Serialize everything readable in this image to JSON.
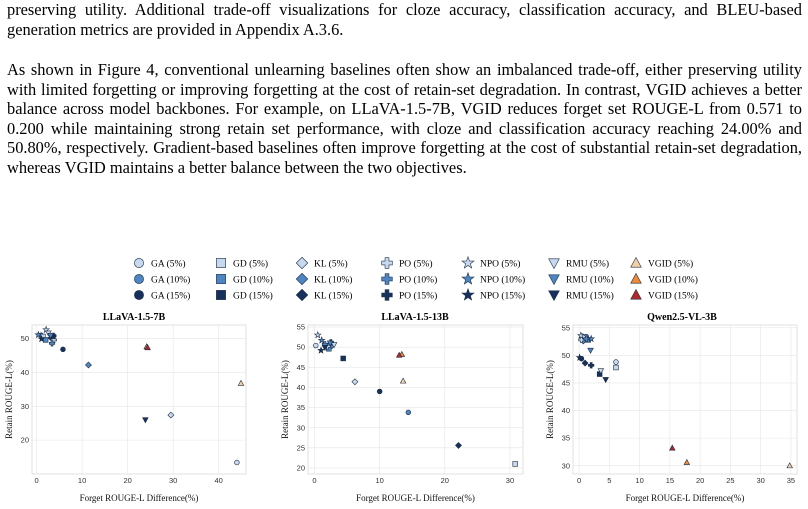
{
  "text": {
    "p1": "preserving utility. Additional trade-off visualizations for cloze accuracy, classification accuracy, and BLEU-based generation metrics are provided in Appendix A.3.6.",
    "p2a": "As shown in Figure 4, conventional unlearning baselines often show an imbalanced trade-off, either preserving utility with limited forgetting or improving forgetting at the cost of retain-set degradation. In contrast, ",
    "vgid": "VGID",
    "p2b": " achieves a better balance across model backbones. For example, on LLaVA-1.5-7B, ",
    "p2c": " reduces forget set ROUGE-L from 0.571 to 0.200 while maintaining strong retain set performance, with cloze and classification accuracy reaching 24.00% and 50.80%, respectively. Gradient-based baselines often improve forgetting at the cost of substantial retain-set degradation, whereas ",
    "p2d": " maintains a better balance between the two objectives."
  },
  "legend": {
    "methods": [
      {
        "name": "GA",
        "marker": "circle",
        "labels": [
          "GA (5%)",
          "GA (10%)",
          "GA (15%)"
        ]
      },
      {
        "name": "GD",
        "marker": "square",
        "labels": [
          "GD (5%)",
          "GD (10%)",
          "GD (15%)"
        ]
      },
      {
        "name": "KL",
        "marker": "diamond",
        "labels": [
          "KL (5%)",
          "KL (10%)",
          "KL (15%)"
        ]
      },
      {
        "name": "PO",
        "marker": "plus",
        "labels": [
          "PO (5%)",
          "PO (10%)",
          "PO (15%)"
        ]
      },
      {
        "name": "NPO",
        "marker": "star",
        "labels": [
          "NPO (5%)",
          "NPO (10%)",
          "NPO (15%)"
        ]
      },
      {
        "name": "RMU",
        "marker": "triangle-down",
        "labels": [
          "RMU (5%)",
          "RMU (10%)",
          "RMU (15%)"
        ]
      },
      {
        "name": "VGID",
        "marker": "triangle-up",
        "labels": [
          "VGID (5%)",
          "VGID (10%)",
          "VGID (15%)"
        ]
      }
    ],
    "blue_shades": [
      "#c6d9ee",
      "#4e86c4",
      "#17315f"
    ],
    "orange_shades": [
      "#f4cfa3",
      "#ef8a3a",
      "#b3292a"
    ]
  },
  "chart_data": [
    {
      "type": "scatter",
      "title": "LLaVA-1.5-7B",
      "xlabel": "Forget ROUGE-L Difference(%)",
      "ylabel": "Retain ROUGE-L(%)",
      "xlim": [
        -1,
        46
      ],
      "ylim": [
        10,
        54
      ],
      "xticks": [
        0,
        10,
        20,
        30,
        40
      ],
      "yticks": [
        20,
        30,
        40,
        50
      ],
      "grid": true,
      "points": [
        {
          "method": "GA",
          "level": 0,
          "x": 44.0,
          "y": 13.4
        },
        {
          "method": "GA",
          "level": 1,
          "x": 1.0,
          "y": 51.0
        },
        {
          "method": "GA",
          "level": 2,
          "x": 5.8,
          "y": 46.8
        },
        {
          "method": "GD",
          "level": 0,
          "x": 1.4,
          "y": 50.6
        },
        {
          "method": "GD",
          "level": 1,
          "x": 2.0,
          "y": 49.6
        },
        {
          "method": "GD",
          "level": 2,
          "x": 3.6,
          "y": 50.6
        },
        {
          "method": "KL",
          "level": 0,
          "x": 29.5,
          "y": 27.4
        },
        {
          "method": "KL",
          "level": 1,
          "x": 11.4,
          "y": 42.2
        },
        {
          "method": "KL",
          "level": 2,
          "x": 3.2,
          "y": 50.2
        },
        {
          "method": "PO",
          "level": 0,
          "x": 3.8,
          "y": 49.6
        },
        {
          "method": "PO",
          "level": 1,
          "x": 3.4,
          "y": 48.6
        },
        {
          "method": "PO",
          "level": 2,
          "x": 3.7,
          "y": 50.8
        },
        {
          "method": "NPO",
          "level": 0,
          "x": 2.1,
          "y": 52.6
        },
        {
          "method": "NPO",
          "level": 1,
          "x": 0.4,
          "y": 51.1
        },
        {
          "method": "NPO",
          "level": 2,
          "x": 1.1,
          "y": 49.9
        },
        {
          "method": "RMU",
          "level": 0,
          "x": 2.6,
          "y": 51.6
        },
        {
          "method": "RMU",
          "level": 1,
          "x": 3.1,
          "y": 50.9
        },
        {
          "method": "RMU",
          "level": 2,
          "x": 23.9,
          "y": 26.0
        },
        {
          "method": "VGID",
          "level": 0,
          "x": 44.9,
          "y": 36.8
        },
        {
          "method": "VGID",
          "level": 1,
          "x": 24.2,
          "y": 47.6
        },
        {
          "method": "VGID",
          "level": 2,
          "x": 24.4,
          "y": 47.3
        }
      ]
    },
    {
      "type": "scatter",
      "title": "LLaVA-1.5-13B",
      "xlabel": "Forget ROUGE-L Difference(%)",
      "ylabel": "Retain ROUGE-L(%)",
      "xlim": [
        -1,
        32
      ],
      "ylim": [
        18.5,
        55.5
      ],
      "xticks": [
        0,
        10,
        20,
        30
      ],
      "yticks": [
        20,
        25,
        30,
        35,
        40,
        45,
        50,
        55
      ],
      "grid": true,
      "points": [
        {
          "method": "GA",
          "level": 0,
          "x": 0.2,
          "y": 50.4
        },
        {
          "method": "GA",
          "level": 1,
          "x": 14.4,
          "y": 33.8
        },
        {
          "method": "GA",
          "level": 2,
          "x": 10.0,
          "y": 39.0
        },
        {
          "method": "GD",
          "level": 0,
          "x": 30.8,
          "y": 21.0
        },
        {
          "method": "GD",
          "level": 1,
          "x": 2.2,
          "y": 49.6
        },
        {
          "method": "GD",
          "level": 2,
          "x": 4.4,
          "y": 47.2
        },
        {
          "method": "KL",
          "level": 0,
          "x": 6.2,
          "y": 41.4
        },
        {
          "method": "KL",
          "level": 1,
          "x": 2.7,
          "y": 50.4
        },
        {
          "method": "KL",
          "level": 2,
          "x": 22.1,
          "y": 25.6
        },
        {
          "method": "PO",
          "level": 0,
          "x": 2.0,
          "y": 50.2
        },
        {
          "method": "PO",
          "level": 1,
          "x": 1.6,
          "y": 50.7
        },
        {
          "method": "PO",
          "level": 2,
          "x": 2.5,
          "y": 51.2
        },
        {
          "method": "NPO",
          "level": 0,
          "x": 0.5,
          "y": 53.0
        },
        {
          "method": "NPO",
          "level": 1,
          "x": 1.1,
          "y": 51.7
        },
        {
          "method": "NPO",
          "level": 2,
          "x": 1.0,
          "y": 49.2
        },
        {
          "method": "RMU",
          "level": 0,
          "x": 3.0,
          "y": 50.6
        },
        {
          "method": "RMU",
          "level": 1,
          "x": 2.4,
          "y": 51.0
        },
        {
          "method": "RMU",
          "level": 2,
          "x": 1.6,
          "y": 49.9
        },
        {
          "method": "VGID",
          "level": 0,
          "x": 13.6,
          "y": 41.6
        },
        {
          "method": "VGID",
          "level": 1,
          "x": 13.4,
          "y": 48.2
        },
        {
          "method": "VGID",
          "level": 2,
          "x": 13.0,
          "y": 48.0
        }
      ]
    },
    {
      "type": "scatter",
      "title": "Qwen2.5-VL-3B",
      "xlabel": "Forget ROUGE-L Difference(%)",
      "ylabel": "Retain ROUGE-L(%)",
      "xlim": [
        -1,
        36
      ],
      "ylim": [
        28.5,
        55.5
      ],
      "xticks": [
        0,
        5,
        10,
        15,
        20,
        25,
        30,
        35
      ],
      "yticks": [
        30,
        35,
        40,
        45,
        50,
        55
      ],
      "grid": true,
      "points": [
        {
          "method": "GA",
          "level": 0,
          "x": 6.1,
          "y": 48.8
        },
        {
          "method": "GA",
          "level": 1,
          "x": 1.2,
          "y": 53.4
        },
        {
          "method": "GA",
          "level": 2,
          "x": 0.4,
          "y": 49.4
        },
        {
          "method": "GD",
          "level": 0,
          "x": 6.1,
          "y": 47.8
        },
        {
          "method": "GD",
          "level": 1,
          "x": 1.5,
          "y": 52.8
        },
        {
          "method": "GD",
          "level": 2,
          "x": 3.4,
          "y": 46.6
        },
        {
          "method": "KL",
          "level": 0,
          "x": 0.6,
          "y": 53.4
        },
        {
          "method": "KL",
          "level": 1,
          "x": 0.7,
          "y": 52.6
        },
        {
          "method": "KL",
          "level": 2,
          "x": 1.0,
          "y": 48.6
        },
        {
          "method": "PO",
          "level": 0,
          "x": 0.4,
          "y": 52.8
        },
        {
          "method": "PO",
          "level": 1,
          "x": 1.2,
          "y": 53.0
        },
        {
          "method": "PO",
          "level": 2,
          "x": 2.0,
          "y": 48.2
        },
        {
          "method": "NPO",
          "level": 0,
          "x": 0.3,
          "y": 53.6
        },
        {
          "method": "NPO",
          "level": 1,
          "x": 2.0,
          "y": 53.0
        },
        {
          "method": "NPO",
          "level": 2,
          "x": 0.1,
          "y": 49.6
        },
        {
          "method": "RMU",
          "level": 0,
          "x": 3.6,
          "y": 47.2
        },
        {
          "method": "RMU",
          "level": 1,
          "x": 1.9,
          "y": 50.9
        },
        {
          "method": "RMU",
          "level": 2,
          "x": 4.4,
          "y": 45.6
        },
        {
          "method": "VGID",
          "level": 0,
          "x": 34.8,
          "y": 30.0
        },
        {
          "method": "VGID",
          "level": 1,
          "x": 17.8,
          "y": 30.6
        },
        {
          "method": "VGID",
          "level": 2,
          "x": 15.4,
          "y": 33.2
        }
      ]
    }
  ]
}
